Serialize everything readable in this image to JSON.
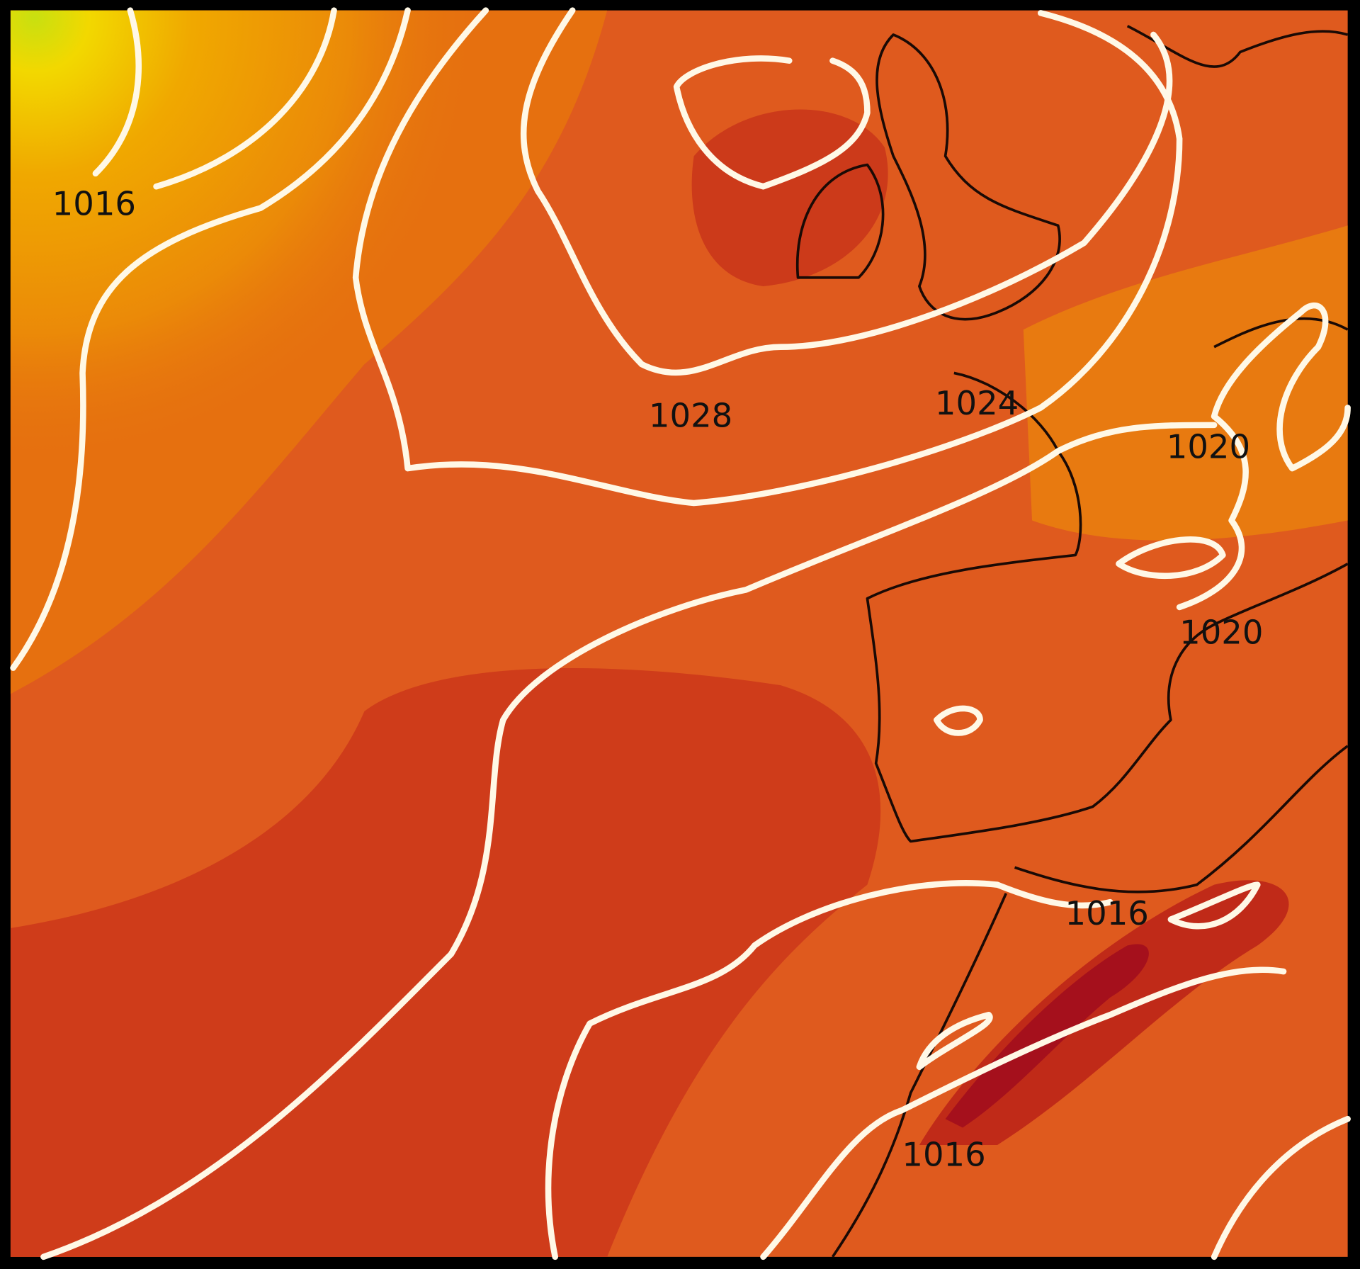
{
  "isobar_labels": [
    "1016",
    "1028",
    "1024",
    "1020",
    "1020",
    "1016",
    "1016"
  ]
}
